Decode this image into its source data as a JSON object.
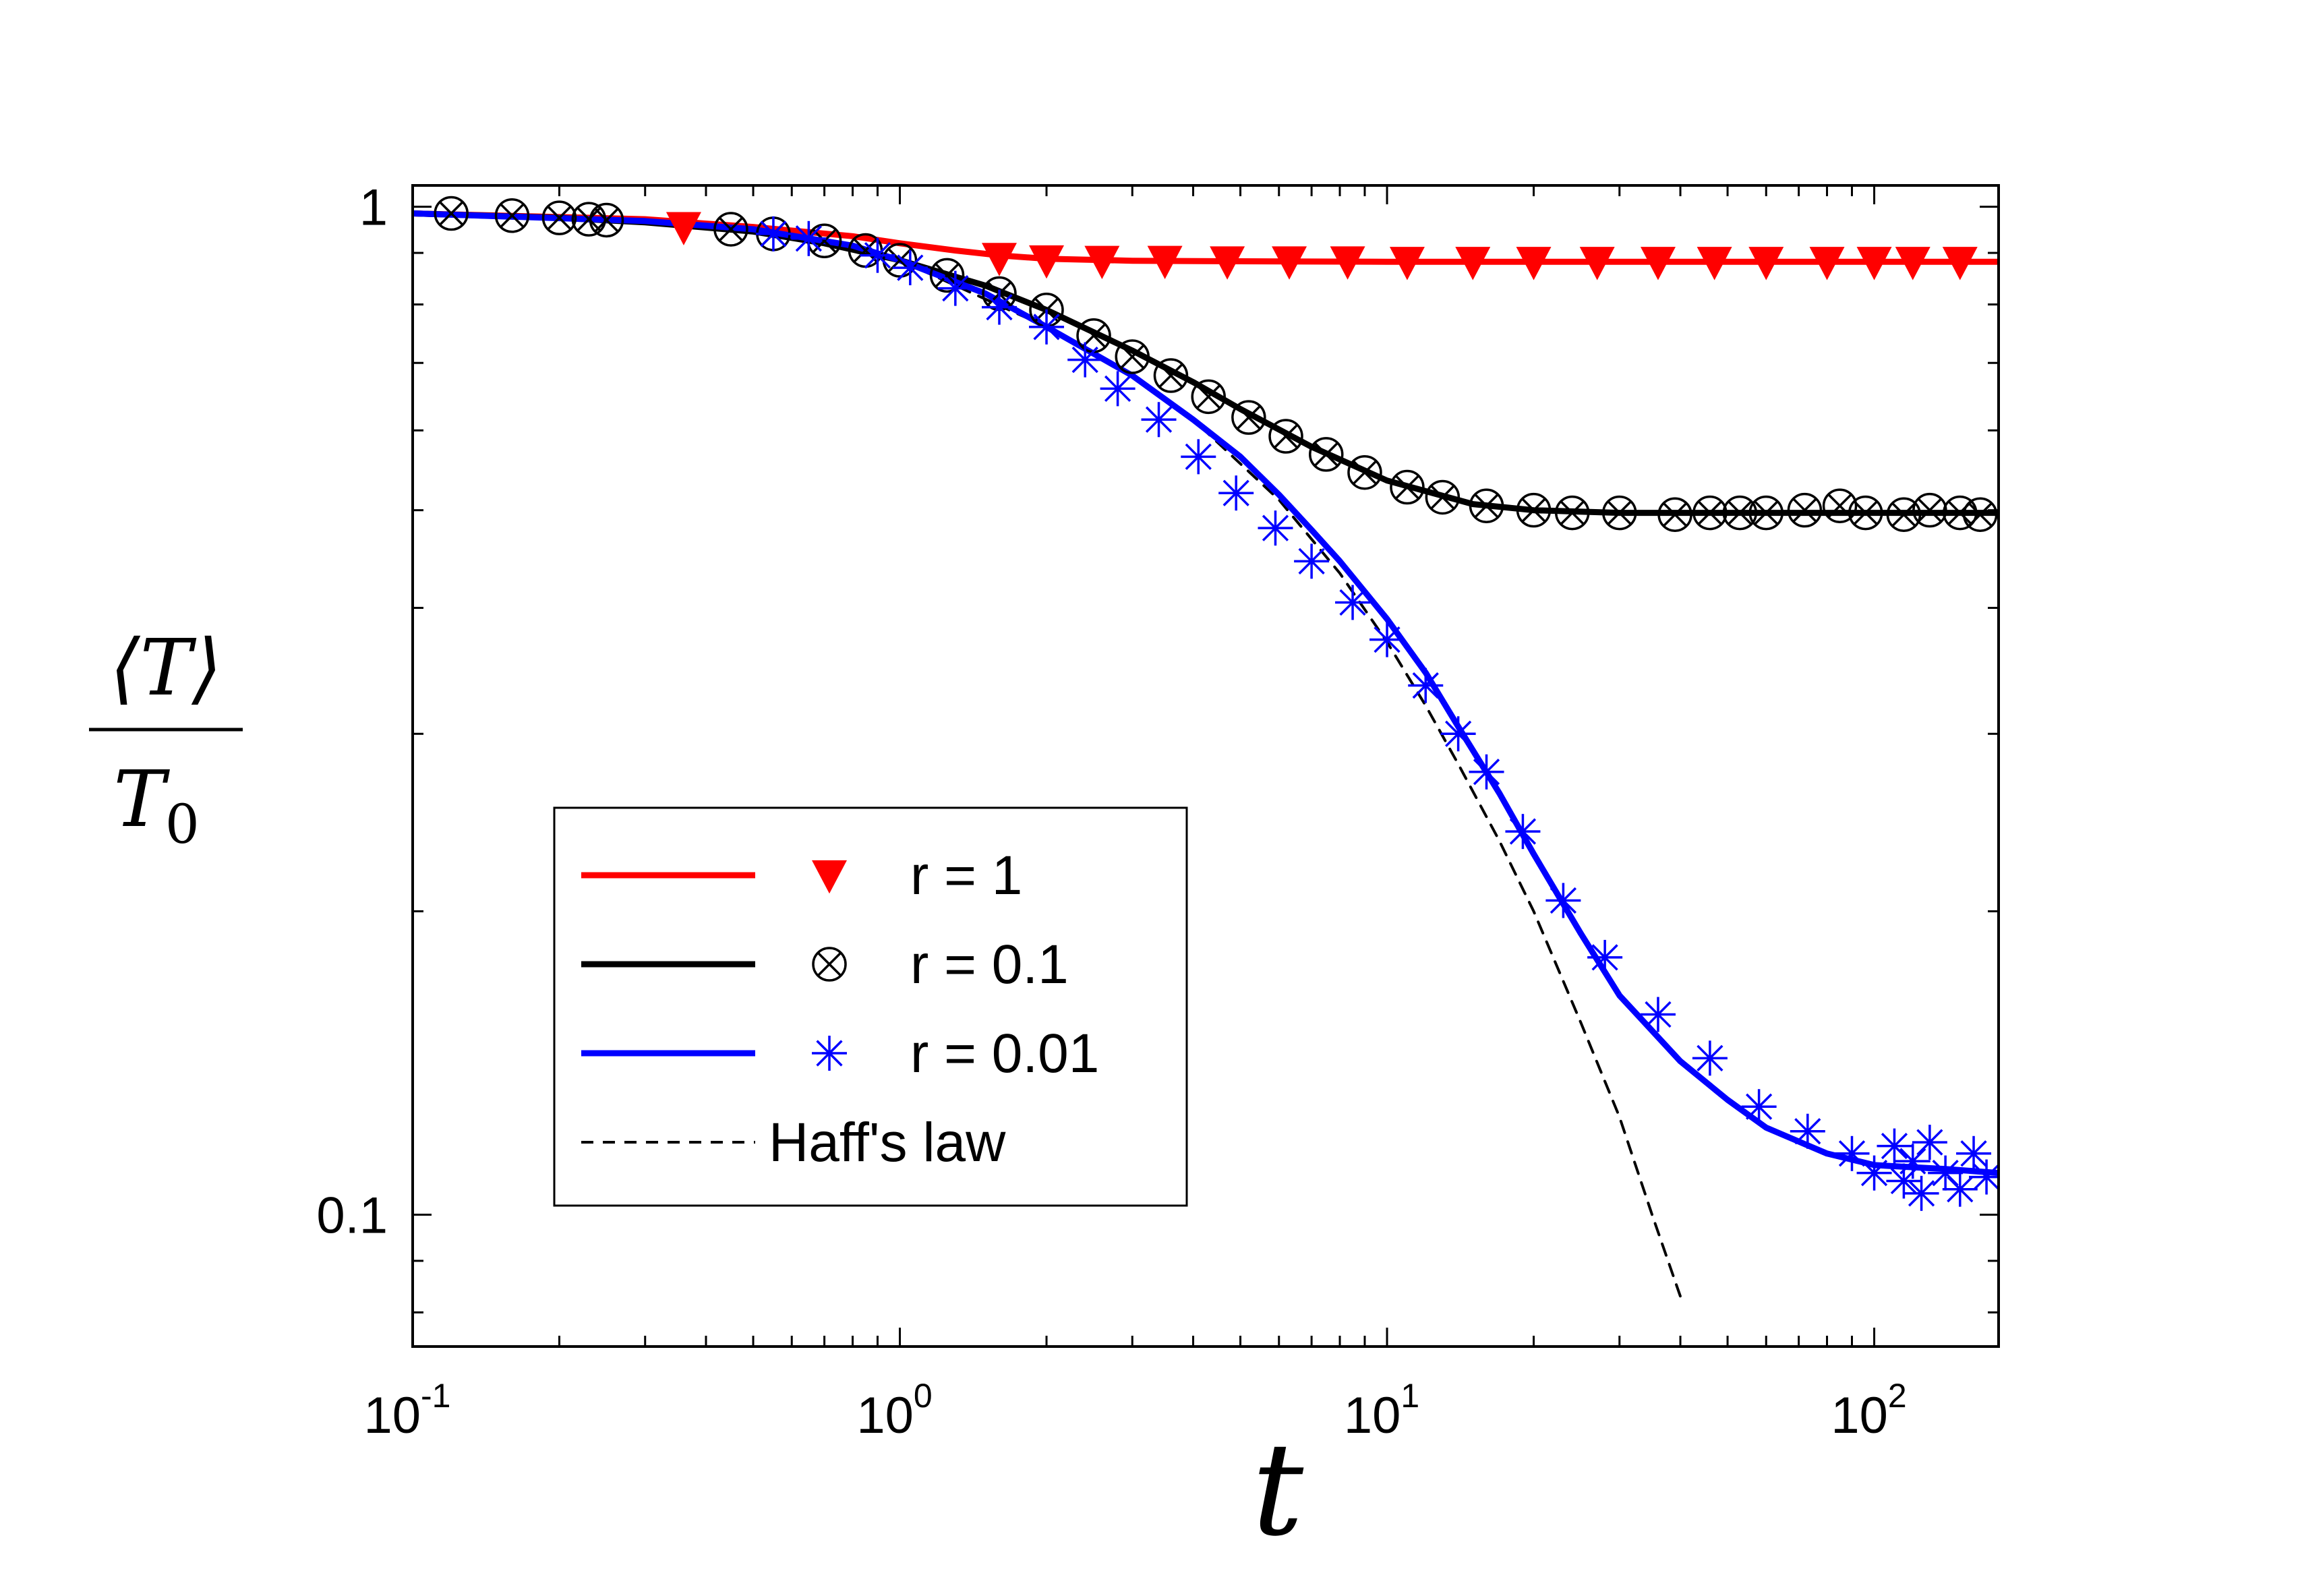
{
  "chart_data": {
    "type": "line",
    "xlabel": "t",
    "ylabel": {
      "numerator": "⟨T⟩",
      "denominator": "T",
      "denominator_subscript": "0"
    },
    "xscale": "log",
    "yscale": "log",
    "xlim": [
      0.1,
      180
    ],
    "ylim": [
      0.074,
      1.05
    ],
    "x_ticks": [
      {
        "value": 0.1,
        "base": "10",
        "exp": "-1"
      },
      {
        "value": 1,
        "base": "10",
        "exp": "0"
      },
      {
        "value": 10,
        "base": "10",
        "exp": "1"
      },
      {
        "value": 100,
        "base": "10",
        "exp": "2"
      }
    ],
    "y_ticks": [
      {
        "value": 1,
        "label": "1"
      },
      {
        "value": 0.1,
        "label": "0.1"
      }
    ],
    "legend_position": "lower-left",
    "grid": false,
    "series": [
      {
        "name": "r = 1",
        "color": "#ff0000",
        "marker": "down-triangle",
        "line_x": [
          0.1,
          0.3,
          0.5,
          0.8,
          1.0,
          1.3,
          1.6,
          2.0,
          3.0,
          5.0,
          10,
          30,
          180
        ],
        "line_y": [
          0.985,
          0.972,
          0.955,
          0.935,
          0.92,
          0.905,
          0.895,
          0.888,
          0.884,
          0.883,
          0.882,
          0.882,
          0.882
        ],
        "points_x": [
          0.36,
          1.6,
          2.0,
          2.6,
          3.5,
          4.7,
          6.3,
          8.3,
          11,
          15,
          20,
          27,
          36,
          47,
          60,
          80,
          100,
          120,
          150
        ],
        "points_y": [
          0.955,
          0.89,
          0.885,
          0.884,
          0.884,
          0.883,
          0.883,
          0.883,
          0.882,
          0.882,
          0.882,
          0.882,
          0.882,
          0.882,
          0.882,
          0.882,
          0.882,
          0.882,
          0.882
        ]
      },
      {
        "name": "r = 0.1",
        "color": "#000000",
        "marker": "circle-x",
        "line_x": [
          0.1,
          0.2,
          0.3,
          0.5,
          0.7,
          1.0,
          1.5,
          2.0,
          3.0,
          4.0,
          5.0,
          7.0,
          10,
          15,
          20,
          30,
          50,
          100,
          180
        ],
        "line_y": [
          0.985,
          0.975,
          0.965,
          0.945,
          0.92,
          0.885,
          0.835,
          0.79,
          0.72,
          0.67,
          0.63,
          0.578,
          0.535,
          0.507,
          0.5,
          0.497,
          0.497,
          0.497,
          0.497
        ],
        "points_x": [
          0.12,
          0.16,
          0.2,
          0.23,
          0.25,
          0.45,
          0.55,
          0.7,
          0.85,
          1.0,
          1.25,
          1.6,
          2.0,
          2.5,
          3.0,
          3.6,
          4.3,
          5.2,
          6.2,
          7.5,
          9.0,
          11,
          13,
          16,
          20,
          24,
          30,
          39,
          46,
          53,
          60,
          72,
          85,
          96,
          115,
          130,
          150,
          165
        ],
        "points_y": [
          0.985,
          0.98,
          0.975,
          0.972,
          0.97,
          0.95,
          0.94,
          0.925,
          0.905,
          0.885,
          0.855,
          0.82,
          0.79,
          0.745,
          0.71,
          0.68,
          0.648,
          0.618,
          0.592,
          0.568,
          0.545,
          0.527,
          0.515,
          0.505,
          0.5,
          0.497,
          0.497,
          0.495,
          0.497,
          0.497,
          0.497,
          0.5,
          0.505,
          0.497,
          0.495,
          0.5,
          0.497,
          0.495
        ]
      },
      {
        "name": "r = 0.01",
        "color": "#0000ff",
        "marker": "asterisk",
        "line_x": [
          0.1,
          0.3,
          0.5,
          0.8,
          1.0,
          1.5,
          2.0,
          3.0,
          4.0,
          5.0,
          6.0,
          7.0,
          8.0,
          10,
          12,
          14,
          17,
          20,
          25,
          30,
          40,
          50,
          60,
          80,
          100,
          140,
          180
        ],
        "line_y": [
          0.985,
          0.968,
          0.95,
          0.915,
          0.885,
          0.82,
          0.76,
          0.68,
          0.615,
          0.565,
          0.518,
          0.478,
          0.445,
          0.39,
          0.345,
          0.305,
          0.262,
          0.228,
          0.19,
          0.165,
          0.142,
          0.13,
          0.122,
          0.115,
          0.112,
          0.111,
          0.11
        ],
        "points_x": [
          0.55,
          0.65,
          0.9,
          1.05,
          1.3,
          1.6,
          2.0,
          2.4,
          2.8,
          3.4,
          4.1,
          4.9,
          5.9,
          7.0,
          8.5,
          10.0,
          12,
          14,
          16,
          19,
          23,
          28,
          36,
          46,
          58,
          73,
          90,
          100,
          110,
          115,
          120,
          125,
          130,
          140,
          150,
          160,
          170
        ],
        "points_y": [
          0.94,
          0.93,
          0.895,
          0.87,
          0.83,
          0.795,
          0.76,
          0.705,
          0.66,
          0.615,
          0.565,
          0.52,
          0.48,
          0.445,
          0.405,
          0.372,
          0.335,
          0.3,
          0.275,
          0.24,
          0.205,
          0.18,
          0.158,
          0.143,
          0.128,
          0.121,
          0.115,
          0.11,
          0.117,
          0.108,
          0.113,
          0.105,
          0.118,
          0.11,
          0.106,
          0.115,
          0.109
        ]
      },
      {
        "name": "Haff's law",
        "color": "#000000",
        "marker": "none",
        "dashed": true,
        "line_x": [
          1.0,
          2.0,
          3.0,
          4.0,
          6.0,
          8.0,
          10,
          12,
          14,
          17,
          20,
          25,
          30,
          35,
          40
        ],
        "line_y": [
          0.885,
          0.76,
          0.68,
          0.615,
          0.512,
          0.433,
          0.37,
          0.32,
          0.28,
          0.235,
          0.2,
          0.155,
          0.125,
          0.1,
          0.083
        ]
      }
    ]
  }
}
